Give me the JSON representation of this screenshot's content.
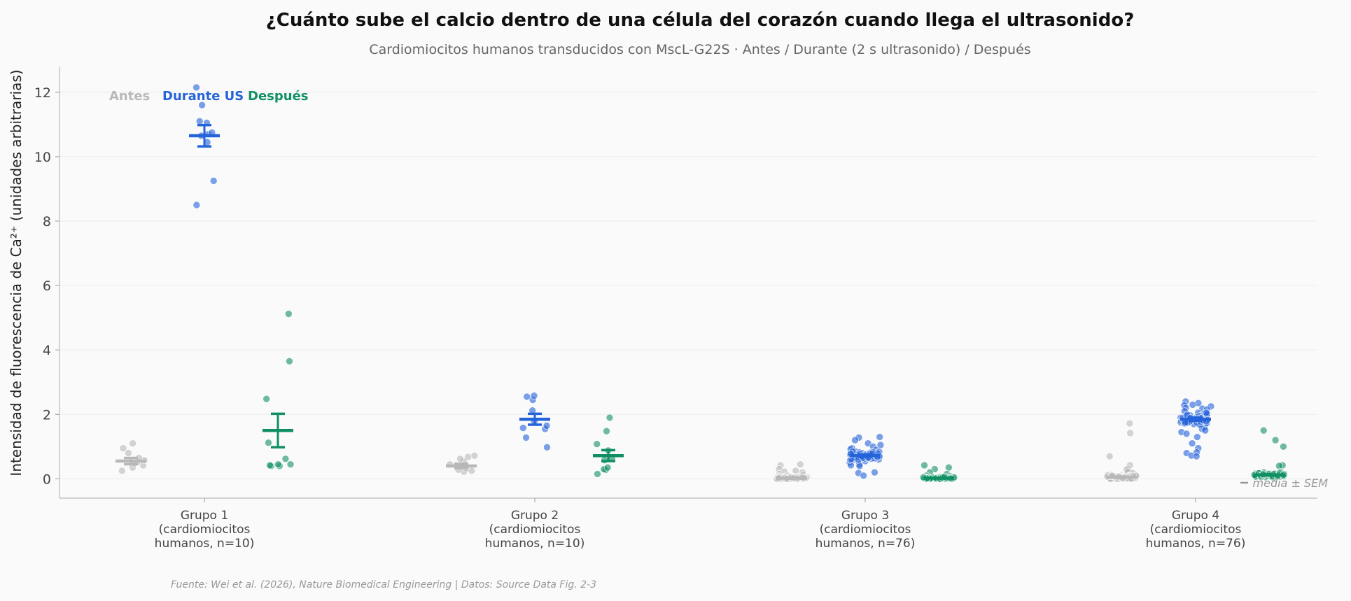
{
  "chart_data": {
    "type": "scatter",
    "title": "¿Cuánto sube el calcio dentro de una célula del corazón cuando llega el ultrasonido?",
    "subtitle": "Cardiomiocitos humanos transducidos con MscL-G22S · Antes / Durante (2 s ultrasonido) / Después",
    "ylabel": "Intensidad de fluorescencia de Ca²⁺ (unidades arbitrarias)",
    "ylim": [
      -0.6,
      12.8
    ],
    "yticks": [
      0,
      2,
      4,
      6,
      8,
      10,
      12
    ],
    "grid": true,
    "legend_placement": "top-left",
    "note": "media ± SEM",
    "source": "Fuente: Wei et al. (2026), Nature Biomedical Engineering | Datos: Source Data Fig. 2-3",
    "conditions": [
      {
        "name": "Antes",
        "color": "#b8b8b8"
      },
      {
        "name": "Durante US",
        "color": "#2463d9"
      },
      {
        "name": "Después",
        "color": "#0f8f62"
      }
    ],
    "groups": [
      {
        "label": [
          "Grupo 1",
          "(cardiomiocitos",
          "humanos, n=10)"
        ],
        "series": [
          {
            "mean": 0.55,
            "sem": 0.1,
            "points": [
              0.25,
              0.35,
              0.42,
              0.48,
              0.52,
              0.58,
              0.65,
              0.8,
              0.95,
              1.1
            ]
          },
          {
            "mean": 10.65,
            "sem": 0.33,
            "points": [
              8.5,
              9.25,
              10.45,
              10.65,
              10.7,
              10.75,
              11.05,
              11.1,
              11.6,
              12.15
            ]
          },
          {
            "mean": 1.5,
            "sem": 0.52,
            "points": [
              0.4,
              0.4,
              0.42,
              0.45,
              0.45,
              0.62,
              1.12,
              2.48,
              3.65,
              5.12
            ]
          }
        ]
      },
      {
        "label": [
          "Grupo 2",
          "(cardiomiocitos",
          "humanos, n=10)"
        ],
        "series": [
          {
            "mean": 0.4,
            "sem": 0.07,
            "points": [
              0.22,
              0.25,
              0.28,
              0.32,
              0.38,
              0.45,
              0.55,
              0.62,
              0.68,
              0.72
            ]
          },
          {
            "mean": 1.85,
            "sem": 0.17,
            "points": [
              0.98,
              1.28,
              1.55,
              1.58,
              1.65,
              1.78,
              2.12,
              2.45,
              2.55,
              2.58
            ]
          },
          {
            "mean": 0.72,
            "sem": 0.17,
            "points": [
              0.15,
              0.28,
              0.3,
              0.35,
              0.58,
              0.62,
              0.88,
              1.08,
              1.48,
              1.9
            ]
          }
        ]
      },
      {
        "label": [
          "Grupo 3",
          "(cardiomiocitos",
          "humanos, n=76)"
        ],
        "n": 76,
        "series": [
          {
            "mean": 0.02,
            "sem": 0.01,
            "points": [
              0.45,
              0.42,
              0.3,
              0.25,
              0.22,
              0.2,
              0.15,
              0.12,
              0.1,
              0.08,
              0.06,
              0.05,
              0.04
            ]
          },
          {
            "mean": 0.72,
            "sem": 0.04,
            "points": [
              1.3,
              1.28,
              1.2,
              1.1,
              1.05,
              1.0,
              0.95,
              0.92,
              0.9,
              0.85,
              0.82,
              0.8,
              0.78,
              0.75,
              0.72,
              0.7,
              0.68,
              0.65,
              0.62,
              0.6,
              0.55,
              0.5,
              0.45,
              0.42,
              0.4,
              0.2,
              0.18,
              0.1
            ]
          },
          {
            "mean": 0.02,
            "sem": 0.01,
            "points": [
              0.42,
              0.35,
              0.3,
              0.2,
              0.15,
              0.1,
              0.08,
              0.05
            ]
          }
        ]
      },
      {
        "label": [
          "Grupo 4",
          "(cardiomiocitos",
          "humanos, n=76)"
        ],
        "n": 76,
        "series": [
          {
            "mean": 0.05,
            "sem": 0.02,
            "points": [
              1.72,
              1.42,
              0.7,
              0.42,
              0.32,
              0.28,
              0.22,
              0.18,
              0.12,
              0.1,
              0.08,
              0.05
            ]
          },
          {
            "mean": 1.85,
            "sem": 0.05,
            "points": [
              2.4,
              2.35,
              2.3,
              2.28,
              2.25,
              2.2,
              2.18,
              2.15,
              2.1,
              2.05,
              2.0,
              1.98,
              1.95,
              1.92,
              1.9,
              1.88,
              1.85,
              1.82,
              1.8,
              1.78,
              1.75,
              1.72,
              1.7,
              1.65,
              1.6,
              1.55,
              1.5,
              1.45,
              1.4,
              1.3,
              1.1,
              0.95,
              0.82,
              0.8,
              0.72,
              0.7
            ]
          },
          {
            "mean": 0.12,
            "sem": 0.02,
            "points": [
              1.5,
              1.2,
              1.0,
              0.42,
              0.4,
              0.22,
              0.2,
              0.18,
              0.15,
              0.12
            ]
          }
        ]
      }
    ]
  }
}
